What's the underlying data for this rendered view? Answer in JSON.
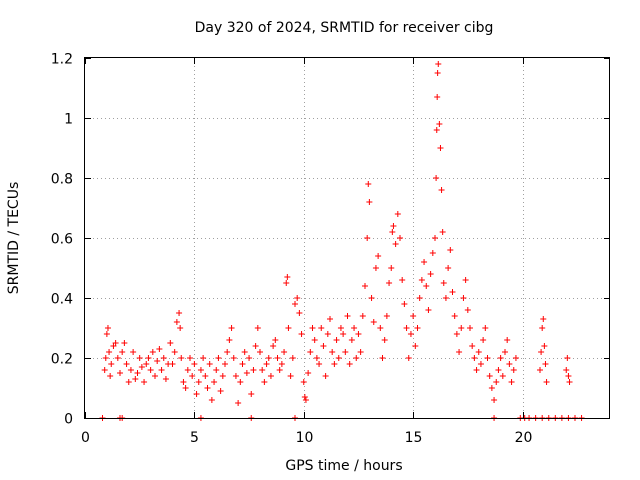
{
  "chart_data": {
    "type": "scatter",
    "title": "Day 320 of 2024, SRMTID for receiver cibg",
    "xlabel": "GPS time / hours",
    "ylabel": "SRMTID / TECUs",
    "xlim": [
      0,
      24
    ],
    "ylim": [
      0,
      1.2
    ],
    "xticks": [
      0,
      5,
      10,
      15,
      20
    ],
    "xtick_labels": [
      "0",
      "5",
      "10",
      "15",
      "20"
    ],
    "yticks": [
      0,
      0.2,
      0.4,
      0.6,
      0.8,
      1.0,
      1.2
    ],
    "ytick_labels": [
      "0",
      "0.2",
      "0.4",
      "0.6",
      "0.8",
      "1",
      "1.2"
    ],
    "grid": true,
    "marker": "+",
    "color": "#ff0000",
    "series": [
      {
        "name": "SRMTID",
        "points": [
          [
            0.8,
            0.0
          ],
          [
            1.6,
            0.0
          ],
          [
            1.7,
            0.0
          ],
          [
            5.3,
            0.0
          ],
          [
            7.6,
            0.0
          ],
          [
            9.6,
            0.0
          ],
          [
            18.7,
            0.0
          ],
          [
            19.9,
            0.0
          ],
          [
            20.1,
            0.0
          ],
          [
            20.3,
            0.0
          ],
          [
            20.6,
            0.0
          ],
          [
            20.9,
            0.0
          ],
          [
            21.2,
            0.0
          ],
          [
            21.5,
            0.0
          ],
          [
            21.8,
            0.0
          ],
          [
            22.1,
            0.0
          ],
          [
            22.4,
            0.0
          ],
          [
            22.7,
            0.0
          ],
          [
            0.9,
            0.16
          ],
          [
            0.95,
            0.2
          ],
          [
            1.0,
            0.28
          ],
          [
            1.05,
            0.3
          ],
          [
            1.1,
            0.22
          ],
          [
            1.15,
            0.14
          ],
          [
            1.2,
            0.18
          ],
          [
            1.3,
            0.24
          ],
          [
            1.4,
            0.25
          ],
          [
            1.5,
            0.2
          ],
          [
            1.6,
            0.15
          ],
          [
            1.7,
            0.22
          ],
          [
            1.8,
            0.25
          ],
          [
            1.9,
            0.18
          ],
          [
            2.0,
            0.12
          ],
          [
            2.1,
            0.16
          ],
          [
            2.2,
            0.22
          ],
          [
            2.3,
            0.13
          ],
          [
            2.4,
            0.15
          ],
          [
            2.5,
            0.2
          ],
          [
            2.6,
            0.17
          ],
          [
            2.7,
            0.12
          ],
          [
            2.8,
            0.18
          ],
          [
            2.9,
            0.2
          ],
          [
            3.0,
            0.16
          ],
          [
            3.1,
            0.22
          ],
          [
            3.2,
            0.14
          ],
          [
            3.3,
            0.19
          ],
          [
            3.4,
            0.23
          ],
          [
            3.5,
            0.16
          ],
          [
            3.6,
            0.2
          ],
          [
            3.7,
            0.13
          ],
          [
            3.8,
            0.18
          ],
          [
            3.9,
            0.25
          ],
          [
            4.0,
            0.18
          ],
          [
            4.1,
            0.22
          ],
          [
            4.2,
            0.32
          ],
          [
            4.3,
            0.35
          ],
          [
            4.35,
            0.3
          ],
          [
            4.4,
            0.2
          ],
          [
            4.5,
            0.12
          ],
          [
            4.6,
            0.1
          ],
          [
            4.7,
            0.16
          ],
          [
            4.8,
            0.2
          ],
          [
            4.9,
            0.14
          ],
          [
            5.0,
            0.18
          ],
          [
            5.1,
            0.08
          ],
          [
            5.2,
            0.12
          ],
          [
            5.3,
            0.16
          ],
          [
            5.4,
            0.2
          ],
          [
            5.5,
            0.14
          ],
          [
            5.6,
            0.1
          ],
          [
            5.7,
            0.18
          ],
          [
            5.8,
            0.06
          ],
          [
            5.9,
            0.12
          ],
          [
            6.0,
            0.16
          ],
          [
            6.1,
            0.2
          ],
          [
            6.2,
            0.09
          ],
          [
            6.3,
            0.14
          ],
          [
            6.4,
            0.18
          ],
          [
            6.5,
            0.22
          ],
          [
            6.6,
            0.26
          ],
          [
            6.7,
            0.3
          ],
          [
            6.8,
            0.2
          ],
          [
            6.9,
            0.14
          ],
          [
            7.0,
            0.05
          ],
          [
            7.1,
            0.12
          ],
          [
            7.2,
            0.18
          ],
          [
            7.3,
            0.22
          ],
          [
            7.4,
            0.15
          ],
          [
            7.5,
            0.2
          ],
          [
            7.6,
            0.08
          ],
          [
            7.7,
            0.16
          ],
          [
            7.8,
            0.24
          ],
          [
            7.9,
            0.3
          ],
          [
            8.0,
            0.22
          ],
          [
            8.1,
            0.16
          ],
          [
            8.2,
            0.12
          ],
          [
            8.3,
            0.18
          ],
          [
            8.4,
            0.2
          ],
          [
            8.5,
            0.14
          ],
          [
            8.6,
            0.24
          ],
          [
            8.7,
            0.26
          ],
          [
            8.8,
            0.2
          ],
          [
            8.9,
            0.16
          ],
          [
            9.0,
            0.18
          ],
          [
            9.1,
            0.22
          ],
          [
            9.2,
            0.45
          ],
          [
            9.25,
            0.47
          ],
          [
            9.3,
            0.3
          ],
          [
            9.4,
            0.14
          ],
          [
            9.5,
            0.2
          ],
          [
            9.6,
            0.38
          ],
          [
            9.7,
            0.4
          ],
          [
            9.8,
            0.35
          ],
          [
            9.9,
            0.28
          ],
          [
            10.0,
            0.12
          ],
          [
            10.05,
            0.07
          ],
          [
            10.1,
            0.06
          ],
          [
            10.2,
            0.15
          ],
          [
            10.3,
            0.22
          ],
          [
            10.4,
            0.3
          ],
          [
            10.5,
            0.26
          ],
          [
            10.6,
            0.2
          ],
          [
            10.7,
            0.18
          ],
          [
            10.8,
            0.3
          ],
          [
            10.9,
            0.24
          ],
          [
            11.0,
            0.14
          ],
          [
            11.1,
            0.28
          ],
          [
            11.2,
            0.33
          ],
          [
            11.3,
            0.22
          ],
          [
            11.4,
            0.18
          ],
          [
            11.5,
            0.26
          ],
          [
            11.6,
            0.2
          ],
          [
            11.7,
            0.3
          ],
          [
            11.8,
            0.28
          ],
          [
            11.9,
            0.22
          ],
          [
            12.0,
            0.34
          ],
          [
            12.1,
            0.18
          ],
          [
            12.2,
            0.26
          ],
          [
            12.3,
            0.3
          ],
          [
            12.4,
            0.2
          ],
          [
            12.5,
            0.28
          ],
          [
            12.6,
            0.22
          ],
          [
            12.7,
            0.34
          ],
          [
            12.8,
            0.44
          ],
          [
            12.9,
            0.6
          ],
          [
            12.95,
            0.78
          ],
          [
            13.0,
            0.72
          ],
          [
            13.1,
            0.4
          ],
          [
            13.2,
            0.32
          ],
          [
            13.3,
            0.5
          ],
          [
            13.4,
            0.54
          ],
          [
            13.5,
            0.3
          ],
          [
            13.6,
            0.2
          ],
          [
            13.7,
            0.26
          ],
          [
            13.8,
            0.34
          ],
          [
            13.9,
            0.45
          ],
          [
            14.0,
            0.5
          ],
          [
            14.05,
            0.62
          ],
          [
            14.1,
            0.64
          ],
          [
            14.2,
            0.58
          ],
          [
            14.3,
            0.68
          ],
          [
            14.4,
            0.6
          ],
          [
            14.5,
            0.46
          ],
          [
            14.6,
            0.38
          ],
          [
            14.7,
            0.3
          ],
          [
            14.8,
            0.2
          ],
          [
            14.9,
            0.28
          ],
          [
            15.0,
            0.34
          ],
          [
            15.1,
            0.24
          ],
          [
            15.2,
            0.3
          ],
          [
            15.3,
            0.4
          ],
          [
            15.4,
            0.46
          ],
          [
            15.5,
            0.52
          ],
          [
            15.6,
            0.44
          ],
          [
            15.7,
            0.36
          ],
          [
            15.8,
            0.48
          ],
          [
            15.9,
            0.55
          ],
          [
            16.0,
            0.6
          ],
          [
            16.05,
            0.8
          ],
          [
            16.08,
            0.96
          ],
          [
            16.1,
            1.07
          ],
          [
            16.12,
            1.15
          ],
          [
            16.15,
            1.18
          ],
          [
            16.2,
            0.98
          ],
          [
            16.25,
            0.9
          ],
          [
            16.3,
            0.76
          ],
          [
            16.35,
            0.62
          ],
          [
            16.4,
            0.45
          ],
          [
            16.5,
            0.4
          ],
          [
            16.6,
            0.5
          ],
          [
            16.7,
            0.56
          ],
          [
            16.8,
            0.42
          ],
          [
            16.9,
            0.34
          ],
          [
            17.0,
            0.28
          ],
          [
            17.1,
            0.22
          ],
          [
            17.2,
            0.3
          ],
          [
            17.3,
            0.4
          ],
          [
            17.4,
            0.46
          ],
          [
            17.5,
            0.36
          ],
          [
            17.6,
            0.3
          ],
          [
            17.7,
            0.24
          ],
          [
            17.8,
            0.2
          ],
          [
            17.9,
            0.16
          ],
          [
            18.0,
            0.22
          ],
          [
            18.1,
            0.18
          ],
          [
            18.2,
            0.26
          ],
          [
            18.3,
            0.3
          ],
          [
            18.4,
            0.2
          ],
          [
            18.5,
            0.14
          ],
          [
            18.6,
            0.1
          ],
          [
            18.7,
            0.06
          ],
          [
            18.8,
            0.12
          ],
          [
            18.9,
            0.16
          ],
          [
            19.0,
            0.2
          ],
          [
            19.1,
            0.14
          ],
          [
            19.2,
            0.22
          ],
          [
            19.3,
            0.26
          ],
          [
            19.4,
            0.18
          ],
          [
            19.5,
            0.12
          ],
          [
            19.6,
            0.16
          ],
          [
            19.7,
            0.2
          ],
          [
            20.8,
            0.16
          ],
          [
            20.85,
            0.22
          ],
          [
            20.9,
            0.3
          ],
          [
            20.95,
            0.33
          ],
          [
            21.0,
            0.24
          ],
          [
            21.05,
            0.18
          ],
          [
            21.1,
            0.12
          ],
          [
            22.0,
            0.16
          ],
          [
            22.05,
            0.2
          ],
          [
            22.1,
            0.14
          ],
          [
            22.15,
            0.12
          ]
        ]
      }
    ]
  }
}
